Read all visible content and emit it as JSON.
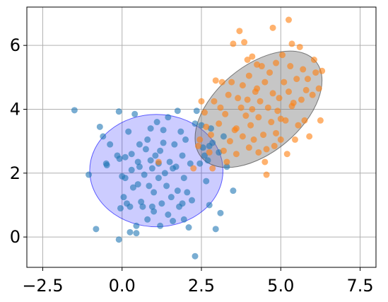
{
  "chart_data": {
    "type": "scatter",
    "xlim": [
      -3.0,
      8.0
    ],
    "ylim": [
      -0.95,
      7.2
    ],
    "x_ticks": [
      -2.5,
      0.0,
      2.5,
      5.0,
      7.5
    ],
    "x_tick_labels": [
      "−2.5",
      "0.0",
      "2.5",
      "5.0",
      "7.5"
    ],
    "y_ticks": [
      0,
      2,
      4,
      6
    ],
    "y_tick_labels": [
      "0",
      "2",
      "4",
      "6"
    ],
    "grid": true,
    "series": [
      {
        "color": "#1f77b4",
        "points": [
          [
            -1.5,
            3.97
          ],
          [
            -1.05,
            1.95
          ],
          [
            -0.82,
            0.25
          ],
          [
            -0.7,
            3.45
          ],
          [
            -0.6,
            3.15
          ],
          [
            -0.5,
            2.3
          ],
          [
            -0.48,
            2.25
          ],
          [
            -0.38,
            2.9
          ],
          [
            -0.15,
            2.55
          ],
          [
            -0.1,
            3.93
          ],
          [
            -0.08,
            2.45
          ],
          [
            -0.1,
            -0.08
          ],
          [
            -0.05,
            0.9
          ],
          [
            0.0,
            1.9
          ],
          [
            0.05,
            1.25
          ],
          [
            0.1,
            2.5
          ],
          [
            0.1,
            1.85
          ],
          [
            0.15,
            1.05
          ],
          [
            0.2,
            3.3
          ],
          [
            0.25,
            0.95
          ],
          [
            0.3,
            2.6
          ],
          [
            0.3,
            2.1
          ],
          [
            0.35,
            1.55
          ],
          [
            0.4,
            3.85
          ],
          [
            0.45,
            0.35
          ],
          [
            0.45,
            0.12
          ],
          [
            0.5,
            2.35
          ],
          [
            0.5,
            1.65
          ],
          [
            0.55,
            2.9
          ],
          [
            0.55,
            2.2
          ],
          [
            0.6,
            1.1
          ],
          [
            0.7,
            1.95
          ],
          [
            0.75,
            2.75
          ],
          [
            0.8,
            3.05
          ],
          [
            0.8,
            0.55
          ],
          [
            0.85,
            1.6
          ],
          [
            0.9,
            3.4
          ],
          [
            0.9,
            2.4
          ],
          [
            0.95,
            2.15
          ],
          [
            1.0,
            1.4
          ],
          [
            1.0,
            0.8
          ],
          [
            1.05,
            2.55
          ],
          [
            1.1,
            3.6
          ],
          [
            1.15,
            1.85
          ],
          [
            1.2,
            2.7
          ],
          [
            1.2,
            0.35
          ],
          [
            1.25,
            1.05
          ],
          [
            1.3,
            3.35
          ],
          [
            1.35,
            2.0
          ],
          [
            1.4,
            1.6
          ],
          [
            1.45,
            3.75
          ],
          [
            1.5,
            2.35
          ],
          [
            1.55,
            1.25
          ],
          [
            1.6,
            0.5
          ],
          [
            1.65,
            2.9
          ],
          [
            1.7,
            2.2
          ],
          [
            1.75,
            3.95
          ],
          [
            1.75,
            1.45
          ],
          [
            1.8,
            0.95
          ],
          [
            1.85,
            3.3
          ],
          [
            1.9,
            2.55
          ],
          [
            1.95,
            0.55
          ],
          [
            1.95,
            1.85
          ],
          [
            2.0,
            3.05
          ],
          [
            2.05,
            1.4
          ],
          [
            2.1,
            0.3
          ],
          [
            2.15,
            2.3
          ],
          [
            2.2,
            1.15
          ],
          [
            2.3,
            3.55
          ],
          [
            2.35,
            3.95
          ],
          [
            2.45,
            2.3
          ],
          [
            2.5,
            3.5
          ],
          [
            2.6,
            2.55
          ],
          [
            2.65,
            1.75
          ],
          [
            2.7,
            2.4
          ],
          [
            2.75,
            1.0
          ],
          [
            2.8,
            3.4
          ],
          [
            2.3,
            -0.6
          ],
          [
            2.95,
            0.25
          ],
          [
            3.05,
            2.65
          ],
          [
            3.2,
            3.15
          ],
          [
            3.1,
            0.75
          ],
          [
            3.5,
            1.45
          ],
          [
            3.3,
            2.2
          ],
          [
            2.85,
            2.95
          ],
          [
            1.3,
            2.95
          ],
          [
            1.6,
            2.15
          ],
          [
            2.55,
            2.8
          ],
          [
            0.65,
            0.95
          ],
          [
            1.45,
            0.7
          ],
          [
            0.25,
            0.15
          ],
          [
            2.75,
            2.85
          ],
          [
            1.15,
            2.3
          ],
          [
            0.95,
            0.95
          ],
          [
            1.9,
            1.05
          ]
        ]
      },
      {
        "color": "#ff7f0e",
        "points": [
          [
            1.15,
            2.35
          ],
          [
            2.25,
            2.15
          ],
          [
            2.4,
            2.85
          ],
          [
            2.45,
            3.05
          ],
          [
            2.5,
            4.25
          ],
          [
            2.6,
            3.9
          ],
          [
            2.65,
            3.45
          ],
          [
            2.75,
            2.65
          ],
          [
            2.8,
            3.2
          ],
          [
            2.85,
            2.15
          ],
          [
            2.9,
            4.25
          ],
          [
            2.95,
            4.9
          ],
          [
            3.05,
            3.55
          ],
          [
            3.1,
            4.05
          ],
          [
            3.15,
            4.85
          ],
          [
            3.2,
            2.7
          ],
          [
            3.25,
            3.85
          ],
          [
            3.3,
            2.35
          ],
          [
            3.35,
            4.45
          ],
          [
            3.4,
            3.0
          ],
          [
            3.45,
            4.85
          ],
          [
            3.5,
            6.05
          ],
          [
            3.55,
            3.35
          ],
          [
            3.6,
            2.6
          ],
          [
            3.65,
            4.35
          ],
          [
            3.7,
            6.45
          ],
          [
            3.75,
            4.05
          ],
          [
            3.8,
            3.15
          ],
          [
            3.8,
            4.75
          ],
          [
            3.85,
            6.1
          ],
          [
            3.9,
            3.8
          ],
          [
            3.95,
            4.3
          ],
          [
            4.0,
            2.8
          ],
          [
            4.0,
            5.05
          ],
          [
            4.05,
            3.5
          ],
          [
            4.1,
            4.0
          ],
          [
            4.1,
            5.65
          ],
          [
            4.15,
            3.05
          ],
          [
            4.2,
            4.55
          ],
          [
            4.25,
            5.4
          ],
          [
            4.3,
            2.65
          ],
          [
            4.3,
            3.75
          ],
          [
            4.35,
            4.25
          ],
          [
            4.4,
            5.35
          ],
          [
            4.45,
            3.2
          ],
          [
            4.5,
            4.85
          ],
          [
            4.5,
            2.35
          ],
          [
            4.55,
            1.95
          ],
          [
            4.6,
            4.05
          ],
          [
            4.65,
            5.15
          ],
          [
            4.7,
            3.6
          ],
          [
            4.75,
            4.5
          ],
          [
            4.75,
            6.55
          ],
          [
            4.8,
            2.85
          ],
          [
            4.85,
            5.45
          ],
          [
            4.9,
            3.95
          ],
          [
            4.95,
            4.35
          ],
          [
            5.0,
            3.7
          ],
          [
            5.05,
            5.7
          ],
          [
            5.1,
            4.85
          ],
          [
            5.15,
            3.65
          ],
          [
            5.2,
            2.6
          ],
          [
            5.25,
            4.55
          ],
          [
            5.3,
            5.35
          ],
          [
            5.35,
            6.05
          ],
          [
            5.4,
            4.2
          ],
          [
            5.45,
            3.05
          ],
          [
            5.5,
            4.95
          ],
          [
            5.55,
            3.5
          ],
          [
            5.6,
            5.95
          ],
          [
            5.65,
            4.3
          ],
          [
            5.7,
            5.25
          ],
          [
            5.75,
            3.65
          ],
          [
            5.8,
            4.6
          ],
          [
            5.85,
            4.95
          ],
          [
            5.9,
            3.15
          ],
          [
            6.0,
            4.45
          ],
          [
            6.05,
            5.55
          ],
          [
            6.1,
            5.15
          ],
          [
            6.2,
            4.65
          ],
          [
            6.25,
            3.65
          ],
          [
            6.3,
            5.2
          ],
          [
            5.25,
            6.8
          ],
          [
            5.0,
            3.05
          ],
          [
            4.25,
            4.65
          ],
          [
            3.6,
            3.4
          ],
          [
            4.55,
            2.75
          ],
          [
            5.35,
            4.1
          ],
          [
            4.85,
            3.25
          ],
          [
            3.95,
            5.55
          ]
        ]
      }
    ],
    "ellipses": [
      {
        "center": [
          1.08,
          2.08
        ],
        "rx": 2.1,
        "ry": 1.76,
        "angle_deg": 0,
        "fill": "#0000ff",
        "fill_opacity": 0.2,
        "stroke": "#0000ff"
      },
      {
        "center": [
          4.3,
          4.0
        ],
        "rx": 2.35,
        "ry": 1.35,
        "angle_deg": 40,
        "fill": "#808080",
        "fill_opacity": 0.45,
        "stroke": "#333333"
      }
    ]
  }
}
